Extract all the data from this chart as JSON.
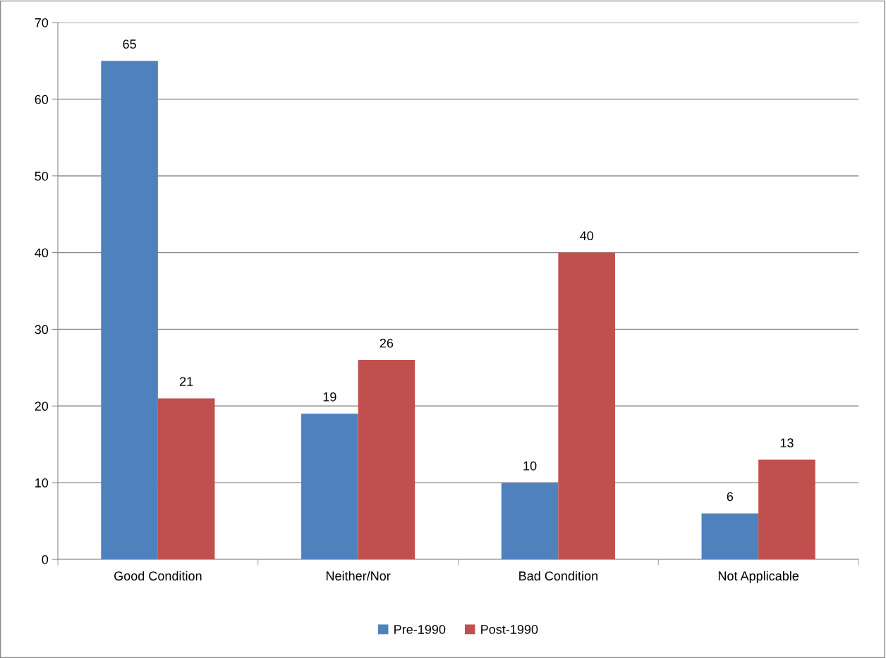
{
  "chart_data": {
    "type": "bar",
    "categories": [
      "Good Condition",
      "Neither/Nor",
      "Bad Condition",
      "Not Applicable"
    ],
    "series": [
      {
        "name": "Pre-1990",
        "color": "#4f81bd",
        "values": [
          65,
          19,
          10,
          6
        ]
      },
      {
        "name": "Post-1990",
        "color": "#c0504d",
        "values": [
          21,
          26,
          40,
          13
        ]
      }
    ],
    "ylim": [
      0,
      70
    ],
    "yticks": [
      0,
      10,
      20,
      30,
      40,
      50,
      60,
      70
    ],
    "grid": "y",
    "legend": "bottom",
    "data_labels": true
  }
}
